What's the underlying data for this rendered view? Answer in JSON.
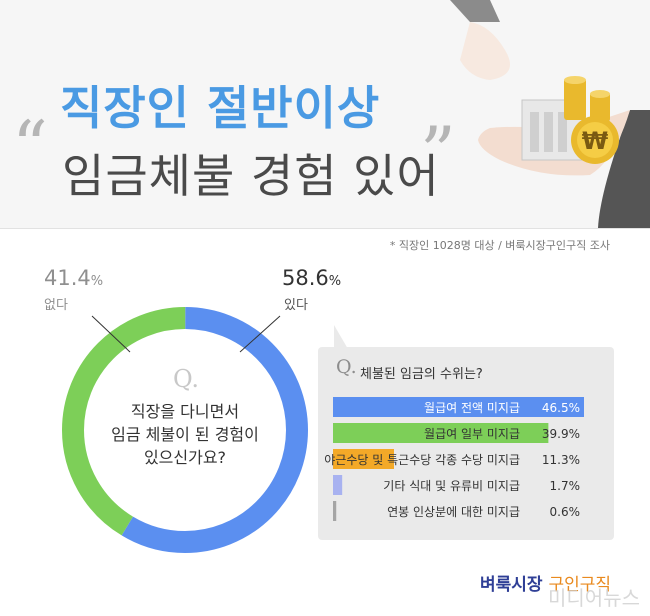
{
  "header": {
    "title_line1": "직장인 절반이상",
    "title_line2": "임금체불 경험 있어",
    "quote_open": "“",
    "quote_close": "”"
  },
  "source_note": "* 직장인 1028명 대상 / 벼룩시장구인구직 조사",
  "survey": {
    "q_mark": "Q.",
    "question_lines": [
      "직장을 다니면서",
      "임금 체불이 된 경험이",
      "있으신가요?"
    ],
    "yes": {
      "value": 58.6,
      "pct": "58.6",
      "unit": "%",
      "label": "있다"
    },
    "no": {
      "value": 41.4,
      "pct": "41.4",
      "unit": "%",
      "label": "없다"
    }
  },
  "panel": {
    "q_mark": "Q.",
    "title": "체불된 임금의 수위는?"
  },
  "colors": {
    "blue": "#5b8ff0",
    "green": "#7dcf58",
    "orange": "#f3a928",
    "lavender": "#a8b2f0",
    "gray_bar": "#a5a5a5",
    "title_blue": "#4a9ae3"
  },
  "chart_data": [
    {
      "type": "pie",
      "title": "",
      "labels": [
        "있다",
        "없다"
      ],
      "values": [
        58.6,
        41.4
      ],
      "unit": "%"
    },
    {
      "type": "bar",
      "orientation": "horizontal",
      "title": "체불된 임금의 수위는?",
      "categories": [
        "월급여 전액 미지급",
        "월급여 일부 미지급",
        "야근수당 및 특근수당 각종 수당 미지급",
        "기타 식대 및 유류비 미지급",
        "연봉 인상분에 대한 미지급"
      ],
      "values": [
        46.5,
        39.9,
        11.3,
        1.7,
        0.6
      ],
      "value_labels": [
        "46.5%",
        "39.9%",
        "11.3%",
        "1.7%",
        "0.6%"
      ],
      "xlim": [
        0,
        46.5
      ],
      "unit": "%"
    }
  ],
  "logo": {
    "main": "벼룩시장",
    "sub": "구인구직"
  },
  "watermark": "미디어뉴스",
  "icons": [
    "hand-icon",
    "coins-icon",
    "building-icon",
    "won-coin-icon"
  ]
}
